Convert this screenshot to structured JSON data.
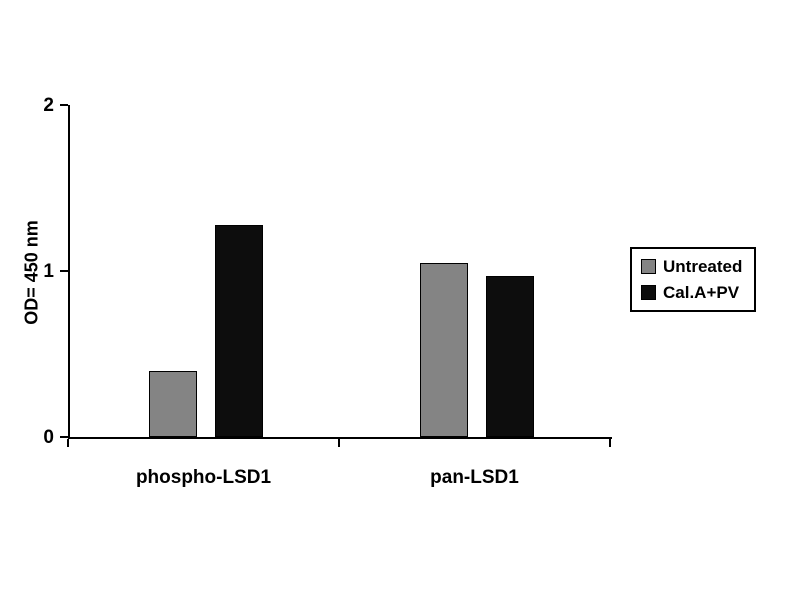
{
  "chart_data": {
    "type": "bar",
    "title": "",
    "xlabel": "",
    "ylabel": "OD= 450 nm",
    "ylim": [
      0,
      2
    ],
    "yticks": [
      0,
      1,
      2
    ],
    "categories": [
      "phospho-LSD1",
      "pan-LSD1"
    ],
    "series": [
      {
        "name": "Untreated",
        "color": "#848484",
        "values": [
          0.4,
          1.05
        ]
      },
      {
        "name": "Cal.A+PV",
        "color": "#0d0d0d",
        "values": [
          1.28,
          0.97
        ]
      }
    ],
    "grid": false,
    "legend_position": "right",
    "background_color": "#ffffff",
    "axis_color": "#000000"
  }
}
